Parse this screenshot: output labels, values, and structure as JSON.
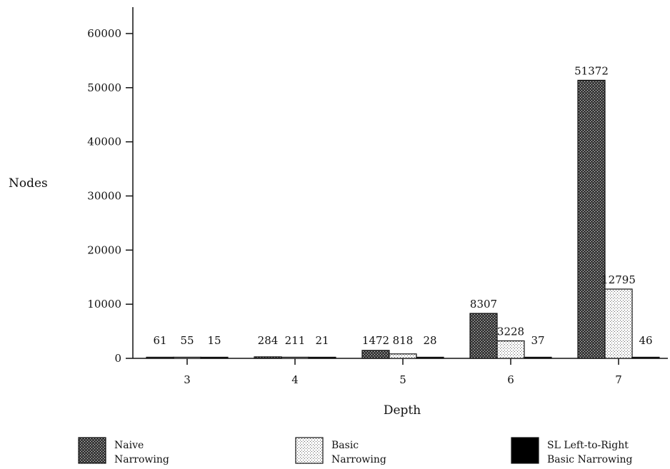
{
  "chart_data": {
    "type": "bar",
    "xlabel": "Depth",
    "ylabel": "Nodes",
    "categories": [
      "3",
      "4",
      "5",
      "6",
      "7"
    ],
    "ylim": [
      0,
      60000
    ],
    "yticks": [
      "0",
      "10000",
      "20000",
      "30000",
      "40000",
      "50000",
      "60000"
    ],
    "series": [
      {
        "name": "Naive Narrowing",
        "name_lines": [
          "Naive",
          "Narrowing"
        ],
        "pattern": "crosshatch-dark",
        "values": [
          61,
          284,
          1472,
          8307,
          51372
        ],
        "labels": [
          "61",
          "284",
          "1472",
          "8307",
          "51372"
        ]
      },
      {
        "name": "Basic Narrowing",
        "name_lines": [
          "Basic",
          "Narrowing"
        ],
        "pattern": "dots-light",
        "values": [
          55,
          211,
          818,
          3228,
          12795
        ],
        "labels": [
          "55",
          "211",
          "818",
          "3228",
          "12795"
        ]
      },
      {
        "name": "SL Left-to-Right Basic Narrowing",
        "name_lines": [
          "SL Left-to-Right",
          "Basic Narrowing"
        ],
        "pattern": "solid-black",
        "values": [
          15,
          21,
          28,
          37,
          46
        ],
        "labels": [
          "15",
          "21",
          "28",
          "37",
          "46"
        ]
      }
    ],
    "grid": false,
    "legend_position": "bottom"
  }
}
